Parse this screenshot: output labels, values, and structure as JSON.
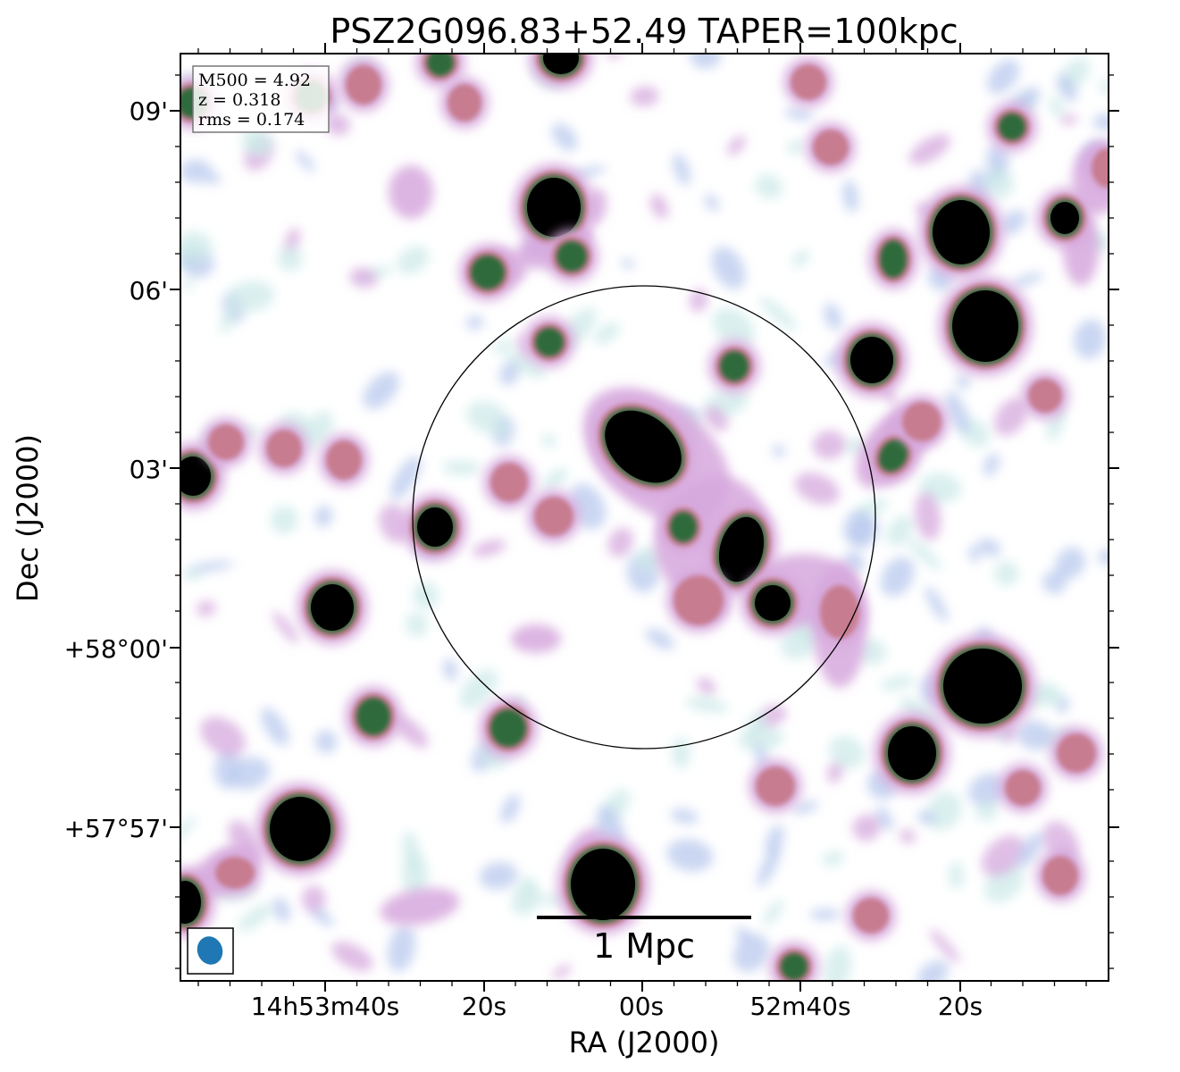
{
  "title": "PSZ2G096.83+52.49 TAPER=100kpc",
  "xlabel": "RA (J2000)",
  "ylabel": "Dec (J2000)",
  "x_ticks": [
    "14h53m40s",
    "20s",
    "00s",
    "52m40s",
    "20s"
  ],
  "y_ticks": [
    "09'",
    "06'",
    "03'",
    "+58°00'",
    "+57°57'"
  ],
  "info_box": {
    "m500": "M500 = 4.92",
    "z": "z = 0.318",
    "rms": "rms = 0.174"
  },
  "scale_bar_label": "1 Mpc",
  "colors": {
    "beam": "#1f77b4",
    "core": "#000000",
    "ring_green": "#2e6b3a",
    "ring_pink": "#c77c8f",
    "halo_lilac": "#d6a8dd",
    "noise_blue": "#b9c9ee",
    "noise_cyan": "#cde9e8",
    "axis": "#000000",
    "circle": "#000000"
  }
}
